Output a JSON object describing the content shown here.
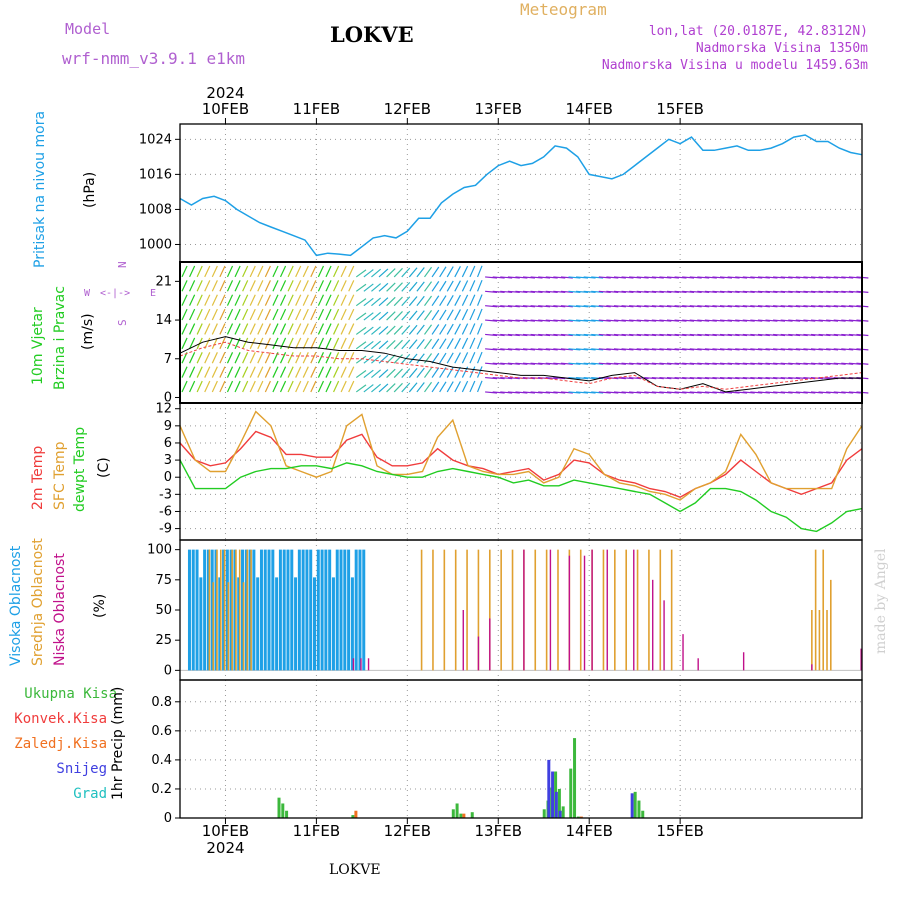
{
  "header": {
    "model_label": "Model",
    "model_name": "wrf-nmm_v3.9.1 e1km",
    "station": "LOKVE",
    "meteogram": "Meteogram",
    "lonlat": "lon,lat (20.0187E, 42.8312N)",
    "altitude": "Nadmorska Visina 1350m",
    "model_altitude": "Nadmorska Visina u modelu 1459.63m"
  },
  "footer": {
    "station": "LOKVE",
    "credit": "made by Angel"
  },
  "colors": {
    "pressure": "#1ea0e6",
    "temp2m": "#f03c3c",
    "sfc": "#e0a030",
    "dewpt": "#22cc22",
    "high_cloud": "#1ea0e6",
    "mid_cloud": "#e0a030",
    "low_cloud": "#c0108a",
    "total_precip": "#3cb83c",
    "conv_precip": "#f03c3c",
    "frz_precip": "#f07020",
    "snow": "#4040e0",
    "graupel": "#20c0c0"
  },
  "time_axis": {
    "year": "2024",
    "days": [
      "10FEB",
      "11FEB",
      "12FEB",
      "13FEB",
      "14FEB",
      "15FEB"
    ]
  },
  "panels": {
    "pressure": {
      "title": "Pritisak na nivou mora",
      "unit": "(hPa)",
      "ticks": [
        "1024",
        "1016",
        "1008",
        "1000"
      ]
    },
    "wind": {
      "title1": "10m Vjetar",
      "title2": "Brzina i Pravac",
      "unit": "(m/s)",
      "ticks": [
        "21",
        "14",
        "7",
        "0"
      ],
      "compass": {
        "n": "N",
        "s": "S",
        "w": "W",
        "e": "E"
      }
    },
    "temp": {
      "t1": "2m Temp",
      "t2": "SFC Temp",
      "t3": "dewpt Temp",
      "unit": "(C)",
      "ticks": [
        "12",
        "9",
        "6",
        "3",
        "0",
        "-3",
        "-6",
        "-9"
      ]
    },
    "cloud": {
      "t1": "Visoka Oblacnost",
      "t2": "Srednja Oblacnost",
      "t3": "Niska Oblacnost",
      "unit": "(%)",
      "ticks": [
        "100",
        "75",
        "50",
        "25",
        "0"
      ]
    },
    "precip": {
      "legend": [
        "Ukupna Kisa",
        "Konvek.Kisa",
        "Zaledj.Kisa",
        "Snijeg",
        "Grad"
      ],
      "unit_label": "1hr Precip (mm)",
      "ticks": [
        "0.8",
        "0.6",
        "0.4",
        "0.2",
        "0"
      ]
    }
  },
  "chart_data": [
    {
      "type": "line",
      "ylabel": "(hPa)",
      "ylim": [
        996,
        1027.5
      ],
      "x_hours": [
        0,
        3,
        6,
        9,
        12,
        15,
        18,
        21,
        24,
        27,
        30,
        33,
        36,
        39,
        42,
        45,
        48,
        51,
        54,
        57,
        60,
        63,
        66,
        69,
        72,
        75,
        78,
        81,
        84,
        87,
        90,
        93,
        96,
        99,
        102,
        105,
        108,
        111,
        114,
        117,
        120,
        123,
        126,
        129,
        132,
        135,
        138,
        141,
        144,
        147,
        150,
        153,
        156,
        159,
        162,
        165,
        168,
        171,
        174,
        177,
        180
      ],
      "series": [
        {
          "values": [
            1010.5,
            1009,
            1010.5,
            1011,
            1010,
            1008,
            1006.5,
            1005,
            1004,
            1003,
            1002,
            1001,
            997.5,
            998,
            997.8,
            997.5,
            999.5,
            1001.5,
            1002,
            1001.5,
            1003,
            1006,
            1006,
            1009.5,
            1011.5,
            1013,
            1013.5,
            1016,
            1018,
            1019,
            1018,
            1018.5,
            1020,
            1022.5,
            1022,
            1020,
            1016,
            1015.5,
            1015,
            1016,
            1018,
            1020,
            1022,
            1024,
            1023,
            1024.5,
            1021.5,
            1021.5,
            1022,
            1022.5,
            1021.5,
            1021.5,
            1022,
            1023,
            1024.5,
            1025,
            1023.5,
            1023.5,
            1022,
            1021,
            1020.5
          ]
        }
      ]
    },
    {
      "type": "line",
      "ylabel": "(m/s)",
      "ylim": [
        -1,
        24.5
      ],
      "x_hours": [
        0,
        6,
        12,
        18,
        24,
        30,
        36,
        42,
        48,
        54,
        60,
        66,
        72,
        78,
        84,
        90,
        96,
        102,
        108,
        114,
        120,
        126,
        132,
        138,
        144,
        150,
        156,
        162,
        168,
        174,
        180
      ],
      "series": [
        {
          "values": [
            8,
            10,
            11,
            10,
            9.5,
            9,
            9,
            8.5,
            8.5,
            8,
            7,
            6.5,
            5.5,
            5,
            4.5,
            4,
            4,
            3.5,
            3,
            4,
            4.5,
            2,
            1.5,
            2.5,
            1,
            1.5,
            2,
            2.5,
            3,
            3.5,
            3.5
          ]
        },
        {
          "values": [
            7.5,
            9,
            10,
            8.5,
            8,
            7.5,
            7.5,
            7,
            7,
            6.5,
            6,
            5.5,
            5,
            4.5,
            4,
            3.5,
            3.5,
            3,
            2.5,
            3.5,
            4,
            2,
            1.5,
            2,
            1.5,
            2,
            2.5,
            3,
            3.5,
            4,
            4.5
          ]
        }
      ]
    },
    {
      "type": "line",
      "ylabel": "(C)",
      "ylim": [
        -11,
        13
      ],
      "x_hours": [
        0,
        4,
        8,
        12,
        16,
        20,
        24,
        28,
        32,
        36,
        40,
        44,
        48,
        52,
        56,
        60,
        64,
        68,
        72,
        76,
        80,
        84,
        88,
        92,
        96,
        100,
        104,
        108,
        112,
        116,
        120,
        124,
        128,
        132,
        136,
        140,
        144,
        148,
        152,
        156,
        160,
        164,
        168,
        172,
        176,
        180
      ],
      "series": [
        {
          "name": "2m Temp",
          "values": [
            6,
            3,
            2,
            2.5,
            5,
            8,
            7,
            4,
            4,
            3.5,
            3.5,
            6.5,
            7.5,
            3.5,
            2,
            2,
            2.5,
            5,
            3,
            2,
            1.5,
            0.5,
            1,
            1.5,
            -0.5,
            0.5,
            3,
            2.5,
            0.5,
            -0.5,
            -1,
            -2,
            -2.5,
            -3.5,
            -2,
            -1,
            0.5,
            3,
            1,
            -1,
            -2,
            -3,
            -2,
            -1,
            3,
            5
          ]
        },
        {
          "name": "SFC Temp",
          "values": [
            9,
            3,
            1,
            1,
            6,
            11.5,
            9,
            2,
            1,
            0,
            1,
            9,
            11,
            2,
            0.5,
            0.5,
            1,
            7,
            10,
            2,
            1,
            0.5,
            0.5,
            1,
            -1,
            0,
            5,
            4,
            0.5,
            -1,
            -1.5,
            -2.5,
            -3,
            -4,
            -2,
            -1,
            1,
            7.5,
            4,
            -1,
            -2,
            -2,
            -2,
            -2,
            5,
            9
          ]
        },
        {
          "name": "dewpt Temp",
          "values": [
            3,
            -2,
            -2,
            -2,
            0,
            1,
            1.5,
            1.5,
            2,
            2,
            1.5,
            2.5,
            2,
            1,
            0.5,
            0,
            0,
            1,
            1.5,
            1,
            0.5,
            0,
            -1,
            -0.5,
            -1.5,
            -1.5,
            -0.5,
            -1,
            -1.5,
            -2,
            -2.5,
            -3,
            -4.5,
            -6,
            -4.5,
            -2,
            -2,
            -2.5,
            -4,
            -6,
            -7,
            -9,
            -9.5,
            -8,
            -6,
            -5.5
          ]
        }
      ]
    },
    {
      "type": "bar",
      "ylabel": "(%)",
      "ylim": [
        0,
        100
      ],
      "x_hours_step": 1,
      "series": [
        {
          "name": "Visoka Oblacnost",
          "values": "see script (hourly, 100% from ~h2 to ~h48)"
        },
        {
          "name": "Srednja Oblacnost",
          "values": "see script (hourly, 100% from ~h64 to ~h130)"
        },
        {
          "name": "Niska Oblacnost",
          "values": "see script (scattered hourly values)"
        }
      ]
    },
    {
      "type": "bar",
      "ylabel": "1hr Precip (mm)",
      "ylim": [
        0,
        0.95
      ],
      "bars": [
        {
          "x": 26.0,
          "total": 0.14,
          "conv": 0,
          "snow": 0
        },
        {
          "x": 27.0,
          "total": 0.1,
          "conv": 0,
          "snow": 0
        },
        {
          "x": 28.0,
          "total": 0.05,
          "conv": 0,
          "snow": 0
        },
        {
          "x": 45.5,
          "total": 0.02,
          "conv": 0.05,
          "snow": 0
        },
        {
          "x": 72.0,
          "total": 0.06,
          "conv": 0,
          "snow": 0
        },
        {
          "x": 73.0,
          "total": 0.1,
          "conv": 0,
          "snow": 0
        },
        {
          "x": 74.0,
          "total": 0.03,
          "conv": 0.03,
          "snow": 0
        },
        {
          "x": 77.0,
          "total": 0.04,
          "conv": 0,
          "snow": 0
        },
        {
          "x": 96.0,
          "total": 0.06,
          "conv": 0,
          "snow": 0
        },
        {
          "x": 97.0,
          "total": 0.12,
          "conv": 0,
          "snow": 0
        },
        {
          "x": 98.0,
          "total": 0.21,
          "conv": 0,
          "snow": 0.4
        },
        {
          "x": 99.0,
          "total": 0.32,
          "conv": 0,
          "snow": 0.32
        },
        {
          "x": 100.0,
          "total": 0.2,
          "conv": 0,
          "snow": 0.18
        },
        {
          "x": 101.0,
          "total": 0.08,
          "conv": 0,
          "snow": 0.05
        },
        {
          "x": 103.0,
          "total": 0.34,
          "conv": 0,
          "snow": 0
        },
        {
          "x": 104.0,
          "total": 0.55,
          "conv": 0,
          "snow": 0
        },
        {
          "x": 105.0,
          "total": 0.01,
          "conv": 0.01,
          "snow": 0
        },
        {
          "x": 120.0,
          "total": 0.18,
          "conv": 0,
          "snow": 0.17
        },
        {
          "x": 121.0,
          "total": 0.12,
          "conv": 0,
          "snow": 0
        },
        {
          "x": 122.0,
          "total": 0.05,
          "conv": 0,
          "snow": 0
        }
      ]
    }
  ]
}
